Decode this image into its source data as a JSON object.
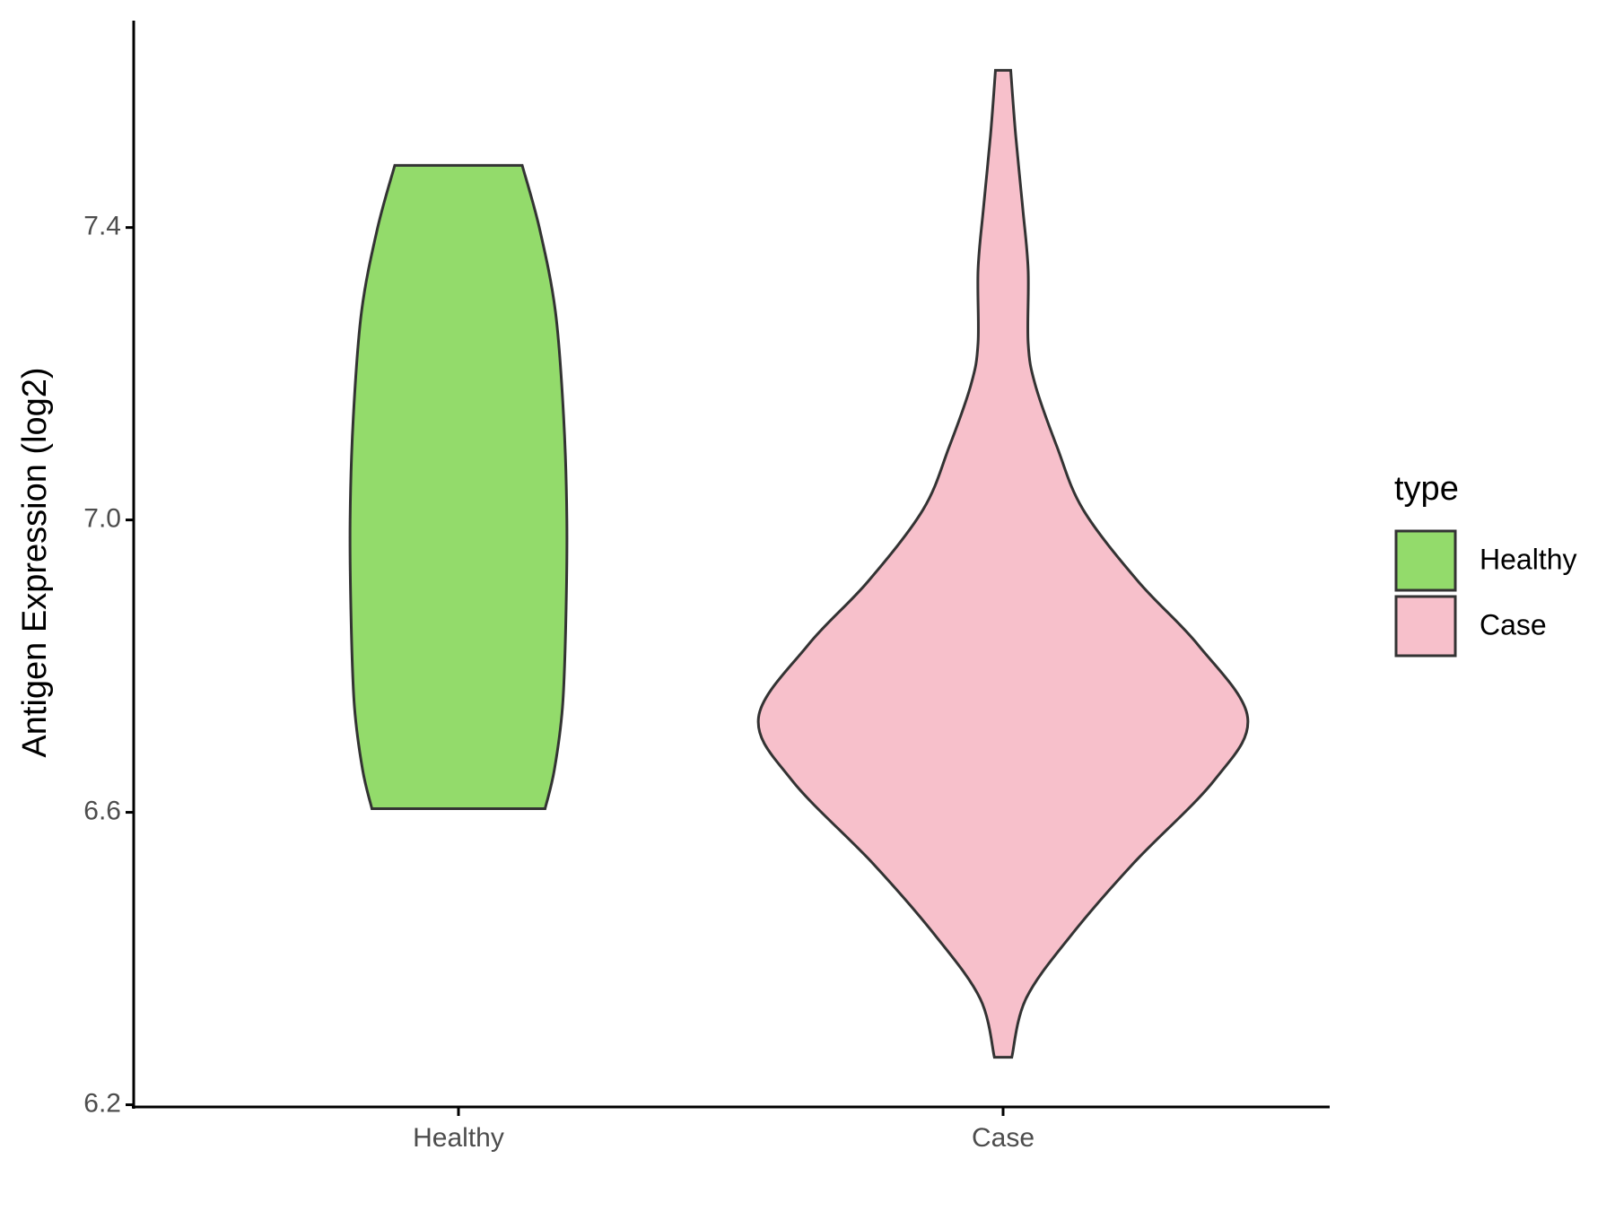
{
  "chart_data": {
    "type": "violin",
    "ylabel": "Antigen Expression (log2)",
    "categories": [
      "Healthy",
      "Case"
    ],
    "legend_title": "type",
    "legend_position": "right",
    "ylim": [
      6.197,
      7.683
    ],
    "yticks": [
      {
        "value": 6.2,
        "label": "6.2"
      },
      {
        "value": 6.6,
        "label": "6.6"
      },
      {
        "value": 7.0,
        "label": "7.0"
      },
      {
        "value": 7.4,
        "label": "7.4"
      }
    ],
    "series": [
      {
        "name": "Healthy",
        "color": "#93db6b",
        "y": [
          7.485,
          7.398,
          7.285,
          7.142,
          7.0,
          6.858,
          6.744,
          6.658,
          6.605
        ],
        "width": [
          0.117,
          0.149,
          0.178,
          0.193,
          0.199,
          0.197,
          0.191,
          0.176,
          0.159
        ]
      },
      {
        "name": "Case",
        "color": "#f7c0cb",
        "y": [
          7.615,
          7.527,
          7.427,
          7.342,
          7.242,
          7.185,
          7.1,
          7.014,
          6.915,
          6.829,
          6.73,
          6.644,
          6.53,
          6.431,
          6.345,
          6.265
        ],
        "width": [
          0.014,
          0.023,
          0.036,
          0.046,
          0.046,
          0.059,
          0.099,
          0.147,
          0.249,
          0.358,
          0.449,
          0.388,
          0.239,
          0.124,
          0.042,
          0.016
        ]
      }
    ]
  }
}
